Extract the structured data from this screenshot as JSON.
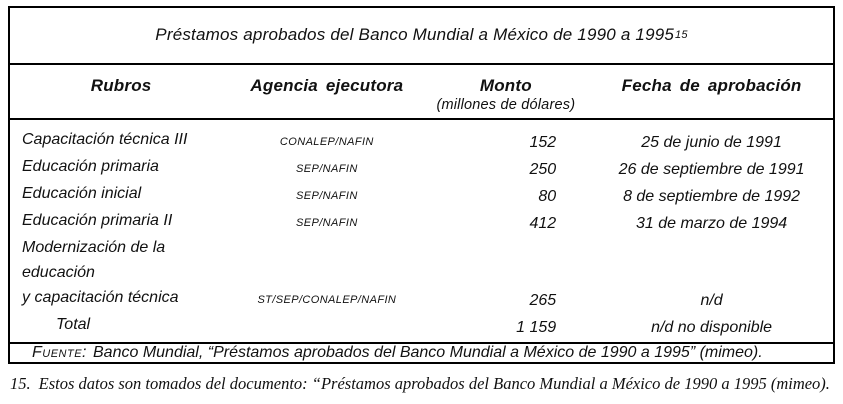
{
  "title": {
    "text": "Préstamos aprobados del Banco Mundial a México de 1990 a 1995",
    "footnote_ref": "15"
  },
  "table": {
    "headers": {
      "rubros": "Rubros",
      "agencia": "Agencia ejecutora",
      "monto": "Monto",
      "monto_sub": "(millones de dólares)",
      "fecha": "Fecha de aprobación"
    },
    "rows": [
      {
        "rubro": "Capacitación técnica III",
        "agencia": "CONALEP/NAFIN",
        "monto": "152",
        "fecha": "25 de junio de 1991"
      },
      {
        "rubro": "Educación primaria",
        "agencia": "SEP/NAFIN",
        "monto": "250",
        "fecha": "26 de septiembre de 1991"
      },
      {
        "rubro": "Educación inicial",
        "agencia": "SEP/NAFIN",
        "monto": "80",
        "fecha": "8 de septiembre de 1992"
      },
      {
        "rubro": "Educación primaria II",
        "agencia": "SEP/NAFIN",
        "monto": "412",
        "fecha": "31 de marzo de 1994"
      },
      {
        "rubro": "Modernización de la educación\ny capacitación técnica",
        "agencia": "ST/SEP/CONALEP/NAFIN",
        "monto": "265",
        "fecha": "n/d"
      }
    ],
    "total": {
      "rubro": "Total",
      "agencia": "",
      "monto": "1 159",
      "fecha": "n/d no disponible"
    }
  },
  "source": {
    "label": "Fuente:",
    "text": "Banco Mundial, “Préstamos aprobados del Banco Mundial a México de 1990 a 1995” (mimeo)."
  },
  "footnote": {
    "number": "15.",
    "text": "Estos datos son tomados del documento: “Préstamos aprobados del Banco Mundial a México de 1990 a 1995 (mimeo)."
  }
}
